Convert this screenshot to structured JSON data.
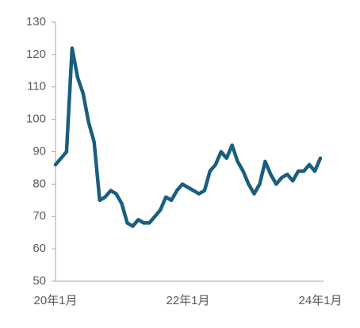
{
  "chart_data": {
    "type": "line",
    "categories": [
      "20年1月",
      null,
      null,
      null,
      null,
      null,
      null,
      null,
      null,
      null,
      null,
      null,
      null,
      null,
      null,
      null,
      null,
      null,
      null,
      null,
      null,
      null,
      null,
      null,
      "22年1月",
      null,
      null,
      null,
      null,
      null,
      null,
      null,
      null,
      null,
      null,
      null,
      null,
      null,
      null,
      null,
      null,
      null,
      null,
      null,
      null,
      null,
      null,
      null,
      "24年1月"
    ],
    "values": [
      86,
      88,
      90,
      122,
      113,
      108,
      99,
      93,
      75,
      76,
      78,
      77,
      74,
      68,
      67,
      69,
      68,
      68,
      70,
      72,
      76,
      75,
      78,
      80,
      79,
      78,
      77,
      78,
      84,
      86,
      90,
      88,
      92,
      87,
      84,
      80,
      77,
      80,
      87,
      83,
      80,
      82,
      83,
      81,
      84,
      84,
      86,
      84,
      88
    ],
    "color": "#1b5e7e",
    "ylim": [
      50,
      130
    ],
    "yticks": [
      50,
      60,
      70,
      80,
      90,
      100,
      110,
      120,
      130
    ]
  }
}
